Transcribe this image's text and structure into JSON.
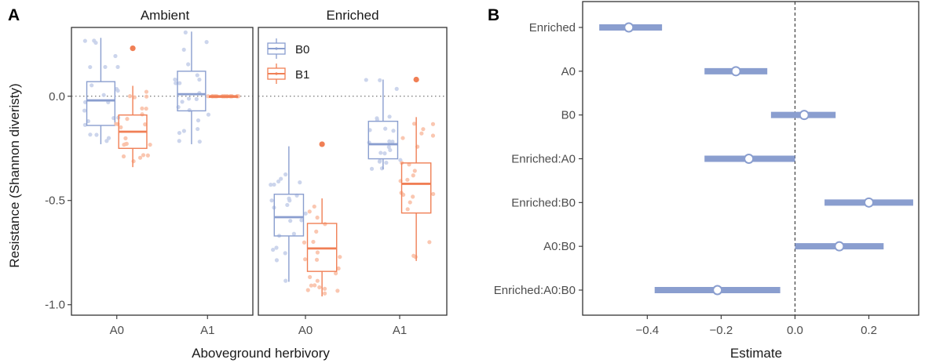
{
  "figure": {
    "panel_a_letter": "A",
    "panel_b_letter": "B"
  },
  "chart_data": [
    {
      "type": "box",
      "panel": "A",
      "facets": [
        "Ambient",
        "Enriched"
      ],
      "categories": [
        "A0",
        "A1"
      ],
      "xlabel": "Aboveground herbivory",
      "ylabel": "Resistance (Shannon diveristy)",
      "ylim": [
        -1.05,
        0.33
      ],
      "yticks": [
        -1.0,
        -0.5,
        0.0
      ],
      "ytick_labels": [
        "-1.0",
        "-0.5",
        "0.0"
      ],
      "reference_line": 0.0,
      "legend": {
        "position": "top-left-inside-right-facet",
        "entries": [
          "B0",
          "B1"
        ]
      },
      "colors": {
        "B0": "#8a9ecf",
        "B1": "#f07f55",
        "B0_points": "#c7d0ea",
        "B1_points": "#f9c1a8"
      },
      "series": [
        {
          "name": "B0",
          "boxes": [
            {
              "facet": "Ambient",
              "category": "A0",
              "whisker_low": -0.23,
              "q1": -0.14,
              "median": -0.02,
              "q3": 0.07,
              "whisker_high": 0.28,
              "outliers": []
            },
            {
              "facet": "Ambient",
              "category": "A1",
              "whisker_low": -0.23,
              "q1": -0.07,
              "median": 0.01,
              "q3": 0.12,
              "whisker_high": 0.31,
              "outliers": []
            },
            {
              "facet": "Enriched",
              "category": "A0",
              "whisker_low": -0.89,
              "q1": -0.67,
              "median": -0.58,
              "q3": -0.47,
              "whisker_high": -0.24,
              "outliers": []
            },
            {
              "facet": "Enriched",
              "category": "A1",
              "whisker_low": -0.35,
              "q1": -0.3,
              "median": -0.23,
              "q3": -0.12,
              "whisker_high": 0.08,
              "outliers": []
            }
          ]
        },
        {
          "name": "B1",
          "boxes": [
            {
              "facet": "Ambient",
              "category": "A0",
              "whisker_low": -0.34,
              "q1": -0.25,
              "median": -0.17,
              "q3": -0.09,
              "whisker_high": 0.05,
              "outliers": [
                0.23
              ]
            },
            {
              "facet": "Ambient",
              "category": "A1",
              "whisker_low": 0.0,
              "q1": 0.0,
              "median": 0.0,
              "q3": 0.0,
              "whisker_high": 0.0,
              "outliers": []
            },
            {
              "facet": "Enriched",
              "category": "A0",
              "whisker_low": -0.96,
              "q1": -0.84,
              "median": -0.73,
              "q3": -0.61,
              "whisker_high": -0.49,
              "outliers": [
                -0.23
              ]
            },
            {
              "facet": "Enriched",
              "category": "A1",
              "whisker_low": -0.79,
              "q1": -0.56,
              "median": -0.42,
              "q3": -0.32,
              "whisker_high": -0.1,
              "outliers": [
                0.08
              ]
            }
          ]
        }
      ]
    },
    {
      "type": "forest",
      "panel": "B",
      "xlabel": "Estimate",
      "xlim": [
        -0.575,
        0.335
      ],
      "xticks": [
        -0.4,
        -0.2,
        0.0,
        0.2
      ],
      "xtick_labels": [
        "−0.4",
        "−0.2",
        "0.0",
        "0.2"
      ],
      "reference_line": 0.0,
      "color": "#8a9ecf",
      "terms": [
        {
          "label": "Enriched",
          "estimate": -0.45,
          "low": -0.53,
          "high": -0.36
        },
        {
          "label": "A0",
          "estimate": -0.16,
          "low": -0.245,
          "high": -0.075
        },
        {
          "label": "B0",
          "estimate": 0.025,
          "low": -0.065,
          "high": 0.11
        },
        {
          "label": "Enriched:A0",
          "estimate": -0.125,
          "low": -0.245,
          "high": 0.0
        },
        {
          "label": "Enriched:B0",
          "estimate": 0.2,
          "low": 0.08,
          "high": 0.32
        },
        {
          "label": "A0:B0",
          "estimate": 0.12,
          "low": 0.0,
          "high": 0.24
        },
        {
          "label": "Enriched:A0:B0",
          "estimate": -0.21,
          "low": -0.38,
          "high": -0.04
        }
      ]
    }
  ]
}
